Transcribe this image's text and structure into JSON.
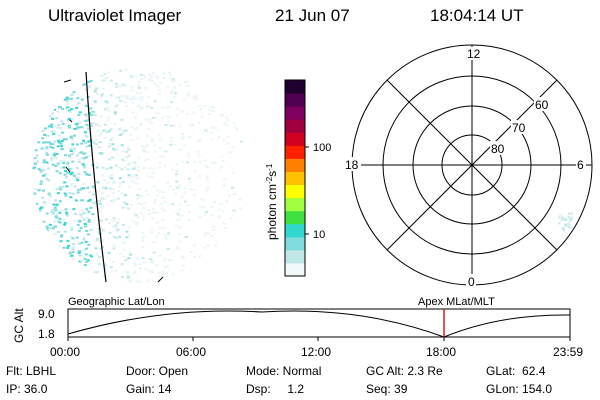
{
  "header": {
    "instrument": "Ultraviolet Imager",
    "date": "21 Jun 07",
    "time": "18:04:14 UT"
  },
  "colorbar": {
    "unit_label": "photon cm",
    "unit_exp1": "-2",
    "unit_mid": "s",
    "unit_exp2": "-1",
    "ticks": [
      {
        "label": "100",
        "value": 100
      },
      {
        "label": "10",
        "value": 10
      }
    ],
    "colors": [
      "#f0f8f8",
      "#c0e8e8",
      "#80dcdc",
      "#30d8d0",
      "#40e040",
      "#a0ff40",
      "#ffff00",
      "#ffc000",
      "#ff8000",
      "#ff2000",
      "#d00020",
      "#a00040",
      "#800060",
      "#500050",
      "#200030"
    ]
  },
  "polar_plot": {
    "mlt_labels": [
      {
        "name": "mlt-12",
        "text": "12"
      },
      {
        "name": "mlt-18",
        "text": "18"
      },
      {
        "name": "mlt-6",
        "text": "6"
      },
      {
        "name": "mlt-0",
        "text": "0"
      }
    ],
    "lat_labels": [
      {
        "name": "lat-60",
        "text": "60"
      },
      {
        "name": "lat-70",
        "text": "70"
      },
      {
        "name": "lat-80",
        "text": "80"
      }
    ]
  },
  "timeline": {
    "left_caption": "Geographic Lat/Lon",
    "right_caption": "Apex MLat/MLT",
    "y_axis_label": "GC Alt",
    "y_ticks": [
      "9.0",
      "1.8"
    ],
    "x_ticks": [
      "00:00",
      "06:00",
      "12:00",
      "18:00",
      "23:59"
    ],
    "marker_time": "18:04",
    "marker_color": "#cc0000"
  },
  "status": {
    "rows": [
      [
        {
          "label": "Flt: LBHL"
        },
        {
          "label": "Door: Open"
        },
        {
          "label": "Mode: Normal"
        },
        {
          "label": "GC Alt: 2.3 Re"
        },
        {
          "label": "GLat:  62.4"
        }
      ],
      [
        {
          "label": "IP: 36.0"
        },
        {
          "label": "Gain: 14"
        },
        {
          "label": "Dsp:     1.2"
        },
        {
          "label": "Seq: 39"
        },
        {
          "label": "GLon: 154.0"
        }
      ]
    ]
  }
}
